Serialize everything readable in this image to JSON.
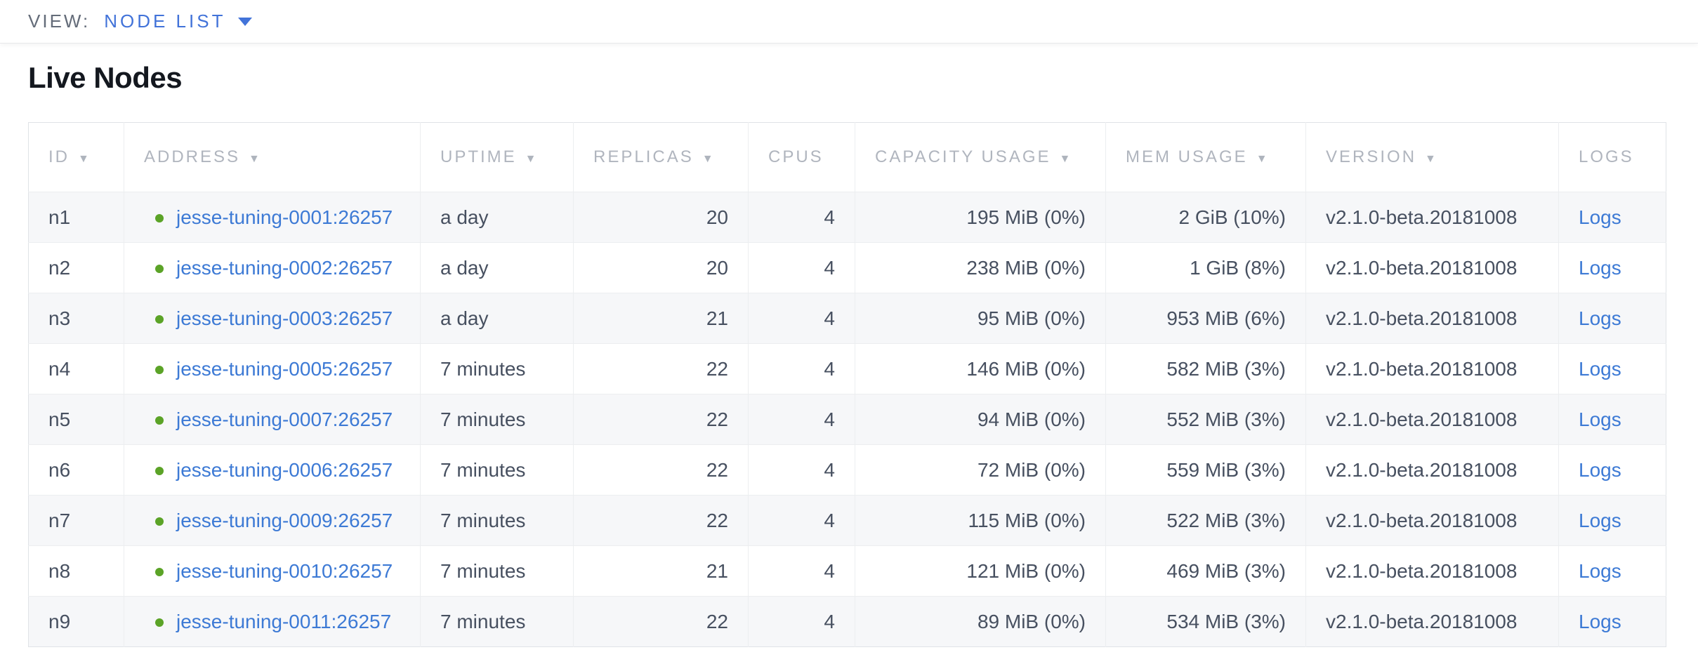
{
  "view_bar": {
    "label": "VIEW:",
    "selected": "NODE LIST"
  },
  "page": {
    "title": "Live Nodes"
  },
  "icons": {
    "sort_desc": "▼",
    "chevron_down": "chevron-down",
    "live_status": "green-dot"
  },
  "colors": {
    "accent_blue": "#4273d9",
    "link_blue": "#3d7ad5",
    "live_green": "#5ba327",
    "header_gray": "#b0b5be",
    "cell_text": "#475060",
    "row_stripe": "#f6f7f9",
    "table_border": "#e0e3e7"
  },
  "table": {
    "columns": [
      {
        "key": "id",
        "label": "ID",
        "sortable": true,
        "align": "left"
      },
      {
        "key": "address",
        "label": "ADDRESS",
        "sortable": true,
        "align": "left"
      },
      {
        "key": "uptime",
        "label": "UPTIME",
        "sortable": true,
        "align": "left"
      },
      {
        "key": "replicas",
        "label": "REPLICAS",
        "sortable": true,
        "align": "right"
      },
      {
        "key": "cpus",
        "label": "CPUS",
        "sortable": false,
        "align": "right"
      },
      {
        "key": "capacity",
        "label": "CAPACITY USAGE",
        "sortable": true,
        "align": "right"
      },
      {
        "key": "mem",
        "label": "MEM USAGE",
        "sortable": true,
        "align": "right"
      },
      {
        "key": "version",
        "label": "VERSION",
        "sortable": true,
        "align": "left"
      },
      {
        "key": "logs",
        "label": "LOGS",
        "sortable": false,
        "align": "left"
      }
    ],
    "rows": [
      {
        "id": "n1",
        "status": "live",
        "address": "jesse-tuning-0001:26257",
        "uptime": "a day",
        "replicas": "20",
        "cpus": "4",
        "capacity": "195 MiB (0%)",
        "mem": "2 GiB (10%)",
        "version": "v2.1.0-beta.20181008",
        "logs": "Logs"
      },
      {
        "id": "n2",
        "status": "live",
        "address": "jesse-tuning-0002:26257",
        "uptime": "a day",
        "replicas": "20",
        "cpus": "4",
        "capacity": "238 MiB (0%)",
        "mem": "1 GiB (8%)",
        "version": "v2.1.0-beta.20181008",
        "logs": "Logs"
      },
      {
        "id": "n3",
        "status": "live",
        "address": "jesse-tuning-0003:26257",
        "uptime": "a day",
        "replicas": "21",
        "cpus": "4",
        "capacity": "95 MiB (0%)",
        "mem": "953 MiB (6%)",
        "version": "v2.1.0-beta.20181008",
        "logs": "Logs"
      },
      {
        "id": "n4",
        "status": "live",
        "address": "jesse-tuning-0005:26257",
        "uptime": "7 minutes",
        "replicas": "22",
        "cpus": "4",
        "capacity": "146 MiB (0%)",
        "mem": "582 MiB (3%)",
        "version": "v2.1.0-beta.20181008",
        "logs": "Logs"
      },
      {
        "id": "n5",
        "status": "live",
        "address": "jesse-tuning-0007:26257",
        "uptime": "7 minutes",
        "replicas": "22",
        "cpus": "4",
        "capacity": "94 MiB (0%)",
        "mem": "552 MiB (3%)",
        "version": "v2.1.0-beta.20181008",
        "logs": "Logs"
      },
      {
        "id": "n6",
        "status": "live",
        "address": "jesse-tuning-0006:26257",
        "uptime": "7 minutes",
        "replicas": "22",
        "cpus": "4",
        "capacity": "72 MiB (0%)",
        "mem": "559 MiB (3%)",
        "version": "v2.1.0-beta.20181008",
        "logs": "Logs"
      },
      {
        "id": "n7",
        "status": "live",
        "address": "jesse-tuning-0009:26257",
        "uptime": "7 minutes",
        "replicas": "22",
        "cpus": "4",
        "capacity": "115 MiB (0%)",
        "mem": "522 MiB (3%)",
        "version": "v2.1.0-beta.20181008",
        "logs": "Logs"
      },
      {
        "id": "n8",
        "status": "live",
        "address": "jesse-tuning-0010:26257",
        "uptime": "7 minutes",
        "replicas": "21",
        "cpus": "4",
        "capacity": "121 MiB (0%)",
        "mem": "469 MiB (3%)",
        "version": "v2.1.0-beta.20181008",
        "logs": "Logs"
      },
      {
        "id": "n9",
        "status": "live",
        "address": "jesse-tuning-0011:26257",
        "uptime": "7 minutes",
        "replicas": "22",
        "cpus": "4",
        "capacity": "89 MiB (0%)",
        "mem": "534 MiB (3%)",
        "version": "v2.1.0-beta.20181008",
        "logs": "Logs"
      }
    ]
  }
}
